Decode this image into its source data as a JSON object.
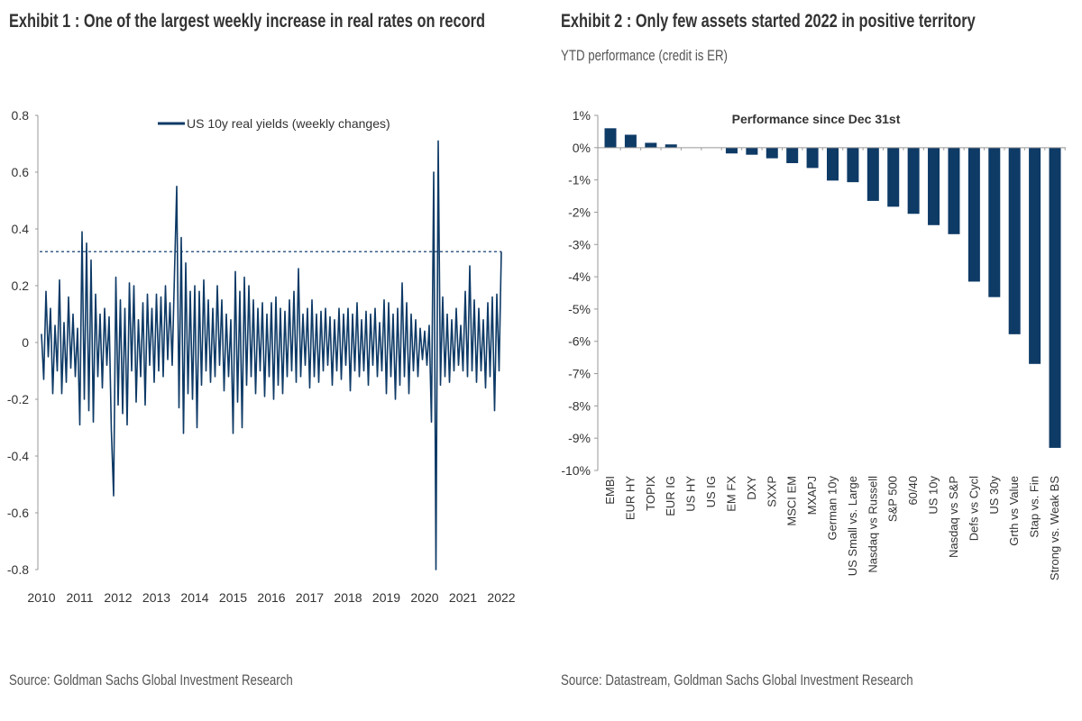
{
  "exhibit1": {
    "title": "Exhibit 1 : One of the largest weekly increase in real rates on record",
    "source": "Source: Goldman Sachs Global Investment Research"
  },
  "exhibit2": {
    "title": "Exhibit 2 : Only few assets started 2022 in positive territory",
    "subtitle": "YTD performance (credit is ER)",
    "source": "Source: Datastream, Goldman Sachs Global Investment Research"
  },
  "colors": {
    "series": "#0e3a66",
    "axis": "#999999"
  },
  "chart_data": [
    {
      "type": "line",
      "title": "",
      "legend": [
        "US 10y real yields (weekly changes)"
      ],
      "legend_position": "top-center",
      "x_start": 2010,
      "x_end": 2022,
      "xticks": [
        "2010",
        "2011",
        "2012",
        "2013",
        "2014",
        "2015",
        "2016",
        "2017",
        "2018",
        "2019",
        "2020",
        "2021",
        "2022"
      ],
      "yticks": [
        "0.8",
        "0.6",
        "0.4",
        "0.2",
        "0",
        "-0.2",
        "-0.4",
        "-0.6",
        "-0.8"
      ],
      "ylim": [
        -0.8,
        0.8
      ],
      "reference_line": {
        "value": 0.32,
        "style": "dashed"
      },
      "series": [
        {
          "name": "US 10y real yields (weekly changes)",
          "values": [
            0.03,
            -0.13,
            0.18,
            -0.05,
            0.12,
            -0.18,
            0.06,
            -0.1,
            0.22,
            -0.18,
            0.07,
            -0.14,
            0.16,
            -0.09,
            0.1,
            -0.12,
            0.05,
            -0.29,
            0.39,
            -0.2,
            0.35,
            -0.24,
            0.29,
            -0.28,
            0.17,
            -0.12,
            0.1,
            -0.16,
            0.12,
            -0.08,
            0.09,
            -0.31,
            -0.54,
            0.23,
            -0.22,
            0.15,
            -0.25,
            0.12,
            -0.29,
            0.21,
            -0.1,
            0.2,
            -0.21,
            0.08,
            -0.12,
            0.14,
            -0.22,
            0.17,
            -0.08,
            0.12,
            -0.14,
            0.17,
            -0.1,
            0.16,
            -0.12,
            0.2,
            -0.06,
            0.14,
            -0.08,
            0.24,
            0.55,
            -0.23,
            0.37,
            -0.32,
            0.28,
            -0.18,
            0.18,
            -0.2,
            0.2,
            -0.3,
            0.18,
            -0.15,
            0.22,
            -0.1,
            0.15,
            -0.14,
            0.12,
            -0.12,
            0.2,
            -0.08,
            0.15,
            -0.17,
            0.1,
            -0.12,
            0.08,
            -0.32,
            0.25,
            -0.21,
            0.18,
            -0.3,
            0.23,
            -0.15,
            0.2,
            -0.12,
            0.15,
            -0.18,
            0.12,
            -0.1,
            0.14,
            -0.19,
            0.1,
            -0.12,
            0.14,
            -0.2,
            0.16,
            -0.15,
            0.12,
            -0.18,
            0.11,
            -0.12,
            0.15,
            -0.1,
            0.18,
            -0.14,
            0.26,
            -0.12,
            0.1,
            -0.08,
            0.12,
            -0.16,
            0.15,
            -0.12,
            0.1,
            -0.14,
            0.11,
            -0.1,
            0.12,
            -0.08,
            0.09,
            -0.15,
            0.08,
            -0.1,
            0.12,
            -0.13,
            0.1,
            -0.08,
            0.12,
            -0.17,
            0.1,
            -0.1,
            0.14,
            -0.12,
            0.08,
            -0.1,
            0.11,
            -0.15,
            0.1,
            -0.08,
            0.12,
            -0.12,
            0.07,
            -0.1,
            0.15,
            -0.18,
            0.14,
            -0.12,
            0.1,
            -0.2,
            0.12,
            -0.15,
            0.21,
            -0.12,
            0.14,
            -0.18,
            0.1,
            -0.1,
            0.08,
            -0.12,
            0.05,
            -0.06,
            0.04,
            -0.08,
            0.06,
            -0.28,
            0.6,
            -0.8,
            0.71,
            -0.15,
            0.16,
            -0.12,
            0.1,
            -0.14,
            0.08,
            -0.1,
            0.12,
            -0.08,
            0.06,
            -0.1,
            0.18,
            -0.12,
            0.27,
            -0.1,
            0.15,
            -0.14,
            0.12,
            -0.1,
            0.08,
            -0.16,
            0.14,
            -0.12,
            0.16,
            -0.24,
            0.17,
            -0.1,
            0.32
          ]
        }
      ]
    },
    {
      "type": "bar",
      "title": "Performance since Dec 31st",
      "ylabel": "",
      "ylim": [
        -10,
        1
      ],
      "yticks": [
        "1%",
        "0%",
        "-1%",
        "-2%",
        "-3%",
        "-4%",
        "-5%",
        "-6%",
        "-7%",
        "-8%",
        "-9%",
        "-10%"
      ],
      "categories": [
        "EMBI",
        "EUR HY",
        "TOPIX",
        "EUR IG",
        "US HY",
        "US IG",
        "EM FX",
        "DXY",
        "SXXP",
        "MSCI EM",
        "MXAPJ",
        "German 10y",
        "US Small vs. Large",
        "Nasdaq vs Russell",
        "S&P 500",
        "60/40",
        "US 10y",
        "Nasdaq vs S&P",
        "Defs vs Cycl",
        "US 30y",
        "Grth vs Value",
        "Stap vs. Fin",
        "Strong vs. Weak BS"
      ],
      "values": [
        0.6,
        0.4,
        0.15,
        0.1,
        0.0,
        0.0,
        -0.18,
        -0.22,
        -0.33,
        -0.48,
        -0.63,
        -1.02,
        -1.07,
        -1.65,
        -1.83,
        -2.05,
        -2.4,
        -2.68,
        -4.15,
        -4.63,
        -5.78,
        -6.7,
        -9.3
      ]
    }
  ]
}
